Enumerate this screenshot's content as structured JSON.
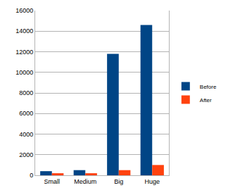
{
  "chart_data": {
    "type": "bar",
    "categories": [
      "Small",
      "Medium",
      "Big",
      "Huge"
    ],
    "series": [
      {
        "name": "Before",
        "color": "#004586",
        "values": [
          400,
          500,
          11800,
          14600
        ]
      },
      {
        "name": "After",
        "color": "#ff420e",
        "values": [
          200,
          200,
          500,
          1000
        ]
      }
    ],
    "ylim": [
      0,
      16000
    ],
    "yticks": [
      0,
      2000,
      4000,
      6000,
      8000,
      10000,
      12000,
      14000,
      16000
    ],
    "grid": true,
    "legend": "right"
  }
}
